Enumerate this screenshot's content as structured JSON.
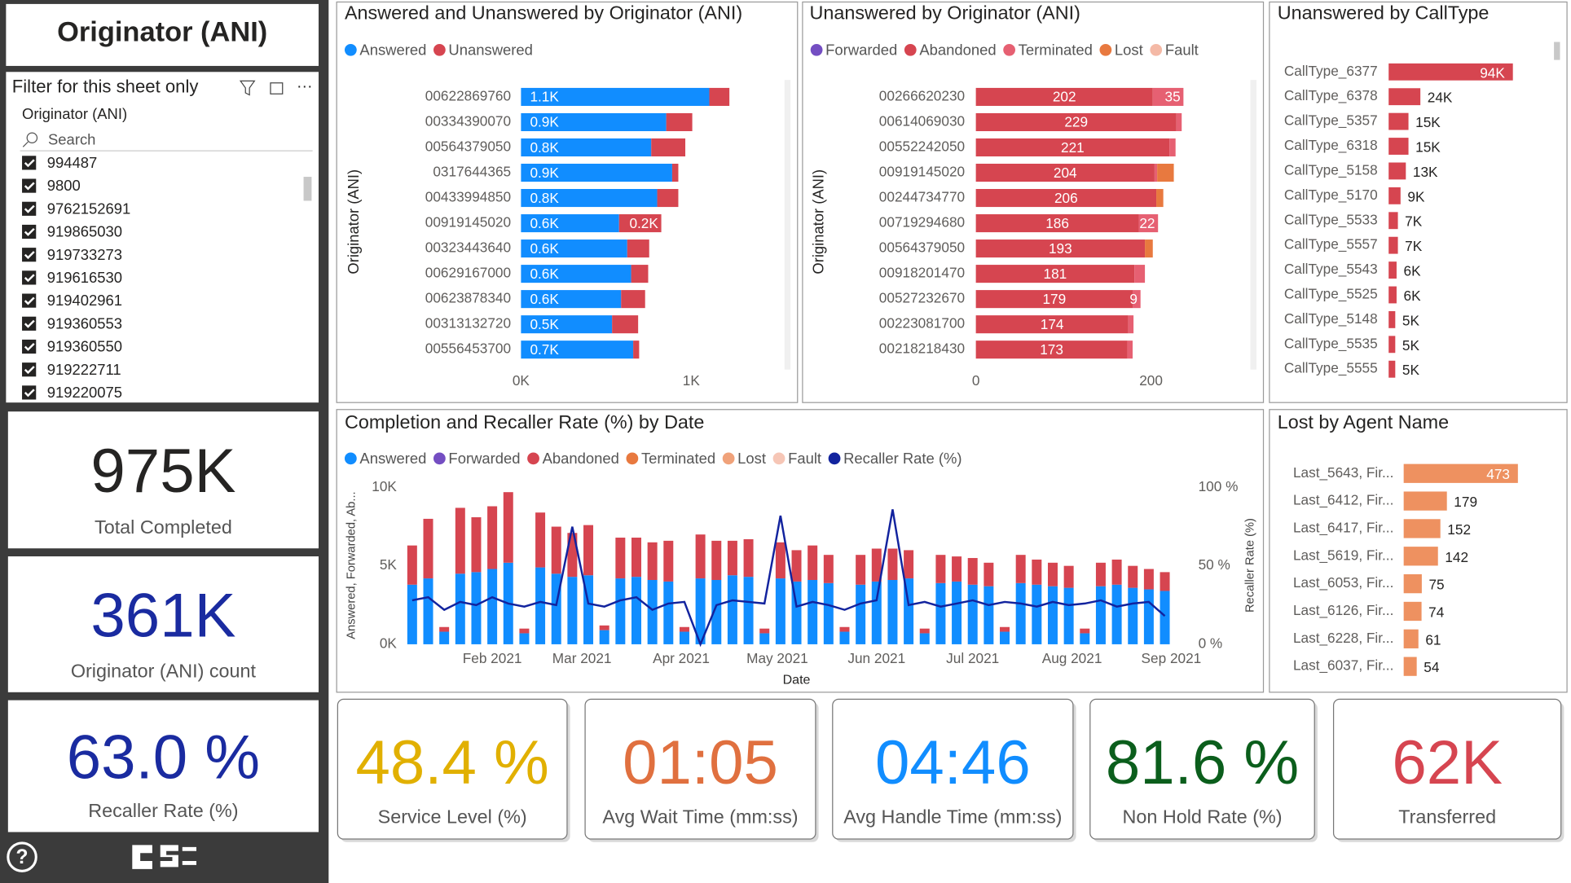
{
  "page": {
    "title": "Originator (ANI)"
  },
  "filter": {
    "title": "Filter for this sheet only",
    "field": "Originator (ANI)",
    "search": "Search",
    "items": [
      "994487",
      "9800",
      "9762152691",
      "919865030",
      "919733273",
      "919616530",
      "919402961",
      "919360553",
      "919360550",
      "919222711",
      "919220075"
    ]
  },
  "kpis": [
    {
      "value": "975K",
      "label": "Total Completed",
      "color": "#252423"
    },
    {
      "value": "361K",
      "label": "Originator (ANI) count",
      "color": "#1a2ba0"
    },
    {
      "value": "63.0 %",
      "label": "Recaller Rate (%)",
      "color": "#1a2ba0"
    },
    {
      "value": "48.4 %",
      "label": "Service Level (%)",
      "color": "#e1b000"
    },
    {
      "value": "01:05",
      "label": "Avg Wait Time (mm:ss)",
      "color": "#e0703f"
    },
    {
      "value": "04:46",
      "label": "Avg Handle Time (mm:ss)",
      "color": "#118dff"
    },
    {
      "value": "81.6 %",
      "label": "Non Hold Rate (%)",
      "color": "#0b5e1c"
    },
    {
      "value": "62K",
      "label": "Transferred",
      "color": "#d64550"
    }
  ],
  "chart_data": [
    {
      "type": "hbar-stacked",
      "title": "Answered and Unanswered by Originator (ANI)",
      "y_label": "Originator (ANI)",
      "categories": [
        "00622869760",
        "00334390070",
        "00564379050",
        "0317644365",
        "00433994850",
        "00919145020",
        "00323443640",
        "00629167000",
        "00623878340",
        "00313132720",
        "00556453700"
      ],
      "series": [
        {
          "name": "Answered",
          "color": "#118dff",
          "values": [
            1106,
            853,
            765,
            888,
            800,
            576,
            624,
            647,
            588,
            535,
            659
          ],
          "value_labels": [
            "1.1K",
            "0.9K",
            "0.8K",
            "0.9K",
            "0.8K",
            "0.6K",
            "0.6K",
            "0.6K",
            "0.6K",
            "0.5K",
            "0.7K"
          ]
        },
        {
          "name": "Unanswered",
          "color": "#d64550",
          "values": [
            118,
            153,
            200,
            36,
            124,
            248,
            129,
            100,
            141,
            153,
            35
          ],
          "value_labels": [
            null,
            null,
            null,
            null,
            null,
            "0.2K",
            null,
            null,
            null,
            null,
            null
          ]
        }
      ],
      "xlim": [
        0,
        1530
      ],
      "xticks": [
        {
          "value": 0,
          "label": "0K"
        },
        {
          "value": 1000,
          "label": "1K"
        }
      ]
    },
    {
      "type": "hbar-stacked",
      "title": "Unanswered by Originator (ANI)",
      "y_label": "Originator (ANI)",
      "categories": [
        "00266620230",
        "00614069030",
        "00552242050",
        "00919145020",
        "00244734770",
        "00719294680",
        "00564379050",
        "00918201470",
        "00527232670",
        "00223081700",
        "00218218430"
      ],
      "series": [
        {
          "name": "Forwarded",
          "color": "#744ec2",
          "values": [
            0,
            0,
            0,
            0,
            0,
            0,
            0,
            0,
            0,
            0,
            0
          ]
        },
        {
          "name": "Abandoned",
          "color": "#d64550",
          "values": [
            202,
            229,
            221,
            204,
            206,
            186,
            193,
            181,
            179,
            174,
            173
          ]
        },
        {
          "name": "Terminated",
          "color": "#e66072",
          "values": [
            35,
            6,
            7,
            3,
            0,
            22,
            0,
            12,
            9,
            6,
            6
          ],
          "value_labels": [
            "35",
            null,
            null,
            null,
            null,
            "22",
            null,
            null,
            "9",
            null,
            null
          ]
        },
        {
          "name": "Lost",
          "color": "#e8793f",
          "values": [
            0,
            0,
            0,
            19,
            8,
            0,
            9,
            0,
            0,
            0,
            0
          ]
        },
        {
          "name": "Fault",
          "color": "#f4b9a6",
          "values": [
            0,
            0,
            0,
            0,
            0,
            0,
            0,
            0,
            0,
            0,
            0
          ]
        }
      ],
      "xlim": [
        0,
        310
      ],
      "xticks": [
        0,
        200
      ]
    },
    {
      "type": "hbar",
      "title": "Unanswered by CallType",
      "color": "#d64550",
      "categories": [
        "CallType_6377",
        "CallType_6378",
        "CallType_5357",
        "CallType_6318",
        "CallType_5158",
        "CallType_5170",
        "CallType_5533",
        "CallType_5557",
        "CallType_5543",
        "CallType_5525",
        "CallType_5148",
        "CallType_5535",
        "CallType_5555"
      ],
      "values": [
        94000,
        24000,
        15000,
        15000,
        13000,
        9000,
        7000,
        7000,
        6000,
        6000,
        5000,
        5000,
        5000
      ],
      "value_labels": [
        "94K",
        "24K",
        "15K",
        "15K",
        "13K",
        "9K",
        "7K",
        "7K",
        "6K",
        "6K",
        "5K",
        "5K",
        "5K"
      ]
    },
    {
      "type": "combo",
      "title": "Completion and Recaller Rate (%) by Date",
      "x_label": "Date",
      "y_label": "Answered, Forwarded, Ab...",
      "y2_label": "Recaller Rate (%)",
      "x": [
        0,
        5,
        10,
        15,
        20,
        25,
        30,
        35,
        40,
        45,
        50,
        55,
        60,
        65,
        70,
        75,
        80,
        85,
        90,
        95,
        100,
        105,
        110,
        115,
        120,
        125,
        130,
        135,
        140,
        145,
        150,
        155,
        160,
        165,
        170,
        175,
        180,
        185,
        190,
        195,
        200,
        205,
        210,
        215,
        220,
        225,
        230,
        235
      ],
      "series": [
        {
          "name": "Answered",
          "color": "#118dff",
          "values": [
            3800,
            4200,
            800,
            4500,
            4600,
            4800,
            5200,
            700,
            4900,
            4500,
            4300,
            4400,
            900,
            4200,
            4300,
            4100,
            4000,
            800,
            4200,
            4100,
            4400,
            4300,
            700,
            4200,
            4000,
            4100,
            3900,
            800,
            3800,
            4000,
            4100,
            4200,
            700,
            3900,
            4000,
            3800,
            3700,
            800,
            3900,
            3800,
            3700,
            3600,
            700,
            3700,
            3800,
            3600,
            3500,
            3400
          ]
        },
        {
          "name": "Forwarded",
          "color": "#744ec2",
          "values": [
            0,
            0,
            0,
            0,
            0,
            0,
            0,
            0,
            0,
            0,
            0,
            0,
            0,
            0,
            0,
            0,
            0,
            0,
            0,
            0,
            0,
            0,
            0,
            0,
            0,
            0,
            0,
            0,
            0,
            0,
            0,
            0,
            0,
            0,
            0,
            0,
            0,
            0,
            0,
            0,
            0,
            0,
            0,
            0,
            0,
            0,
            0,
            0
          ]
        },
        {
          "name": "Abandoned",
          "color": "#d64550",
          "values": [
            2500,
            3800,
            300,
            4200,
            3500,
            4000,
            4500,
            300,
            3500,
            3000,
            2800,
            3200,
            300,
            2600,
            2500,
            2400,
            2600,
            300,
            2800,
            2500,
            2200,
            2400,
            300,
            2300,
            2000,
            2200,
            1800,
            300,
            1900,
            2100,
            2000,
            1800,
            300,
            1800,
            1600,
            1700,
            1500,
            300,
            1800,
            1600,
            1500,
            1400,
            300,
            1500,
            1600,
            1400,
            1300,
            1200
          ]
        },
        {
          "name": "Terminated",
          "color": "#e8793f",
          "values": [
            0,
            0,
            0,
            0,
            0,
            0,
            0,
            0,
            0,
            0,
            0,
            0,
            0,
            0,
            0,
            0,
            0,
            0,
            0,
            0,
            0,
            0,
            0,
            0,
            0,
            0,
            0,
            0,
            0,
            0,
            0,
            0,
            0,
            0,
            0,
            0,
            0,
            0,
            0,
            0,
            0,
            0,
            0,
            0,
            0,
            0,
            0,
            0
          ]
        },
        {
          "name": "Lost",
          "color": "#f0a27a",
          "values": [
            0,
            0,
            0,
            0,
            0,
            0,
            0,
            0,
            0,
            0,
            0,
            0,
            0,
            0,
            0,
            0,
            0,
            0,
            0,
            0,
            0,
            0,
            0,
            0,
            0,
            0,
            0,
            0,
            0,
            0,
            0,
            0,
            0,
            0,
            0,
            0,
            0,
            0,
            0,
            0,
            0,
            0,
            0,
            0,
            0,
            0,
            0,
            0
          ]
        },
        {
          "name": "Fault",
          "color": "#f6c6b6",
          "values": [
            0,
            0,
            0,
            0,
            0,
            0,
            0,
            0,
            0,
            0,
            0,
            0,
            0,
            0,
            0,
            0,
            0,
            0,
            0,
            0,
            0,
            0,
            0,
            0,
            0,
            0,
            0,
            0,
            0,
            0,
            0,
            0,
            0,
            0,
            0,
            0,
            0,
            0,
            0,
            0,
            0,
            0,
            0,
            0,
            0,
            0,
            0,
            0
          ]
        },
        {
          "name": "Recaller Rate (%)",
          "color": "#12239e",
          "type": "line",
          "axis": "y2",
          "values": [
            28,
            30,
            22,
            27,
            25,
            30,
            26,
            24,
            27,
            25,
            75,
            26,
            24,
            28,
            30,
            22,
            26,
            27,
            0,
            25,
            28,
            27,
            26,
            82,
            24,
            27,
            25,
            22,
            26,
            28,
            86,
            25,
            27,
            24,
            26,
            28,
            25,
            27,
            26,
            24,
            27,
            25,
            26,
            28,
            24,
            26,
            27,
            18
          ]
        }
      ],
      "xlim": [
        -2,
        242
      ],
      "xticks": [
        {
          "value": 25,
          "label": "Feb 2021"
        },
        {
          "value": 53,
          "label": "Mar 2021"
        },
        {
          "value": 84,
          "label": "Apr 2021"
        },
        {
          "value": 114,
          "label": "May 2021"
        },
        {
          "value": 145,
          "label": "Jun 2021"
        },
        {
          "value": 175,
          "label": "Jul 2021"
        },
        {
          "value": 206,
          "label": "Aug 2021"
        },
        {
          "value": 237,
          "label": "Sep 2021"
        }
      ],
      "ylim": [
        0,
        10000
      ],
      "yticks": [
        {
          "value": 0,
          "label": "0K"
        },
        {
          "value": 5000,
          "label": "5K"
        },
        {
          "value": 10000,
          "label": "10K"
        }
      ],
      "y2lim": [
        0,
        100
      ],
      "y2ticks": [
        {
          "value": 0,
          "label": "0 %"
        },
        {
          "value": 50,
          "label": "50 %"
        },
        {
          "value": 100,
          "label": "100 %"
        }
      ]
    },
    {
      "type": "hbar",
      "title": "Lost by Agent Name",
      "color": "#ee9160",
      "categories": [
        "Last_5643, Fir...",
        "Last_6412, Fir...",
        "Last_6417, Fir...",
        "Last_5619, Fir...",
        "Last_6053, Fir...",
        "Last_6126, Fir...",
        "Last_6228, Fir...",
        "Last_6037, Fir..."
      ],
      "values": [
        473,
        179,
        152,
        142,
        75,
        74,
        61,
        54
      ]
    }
  ]
}
